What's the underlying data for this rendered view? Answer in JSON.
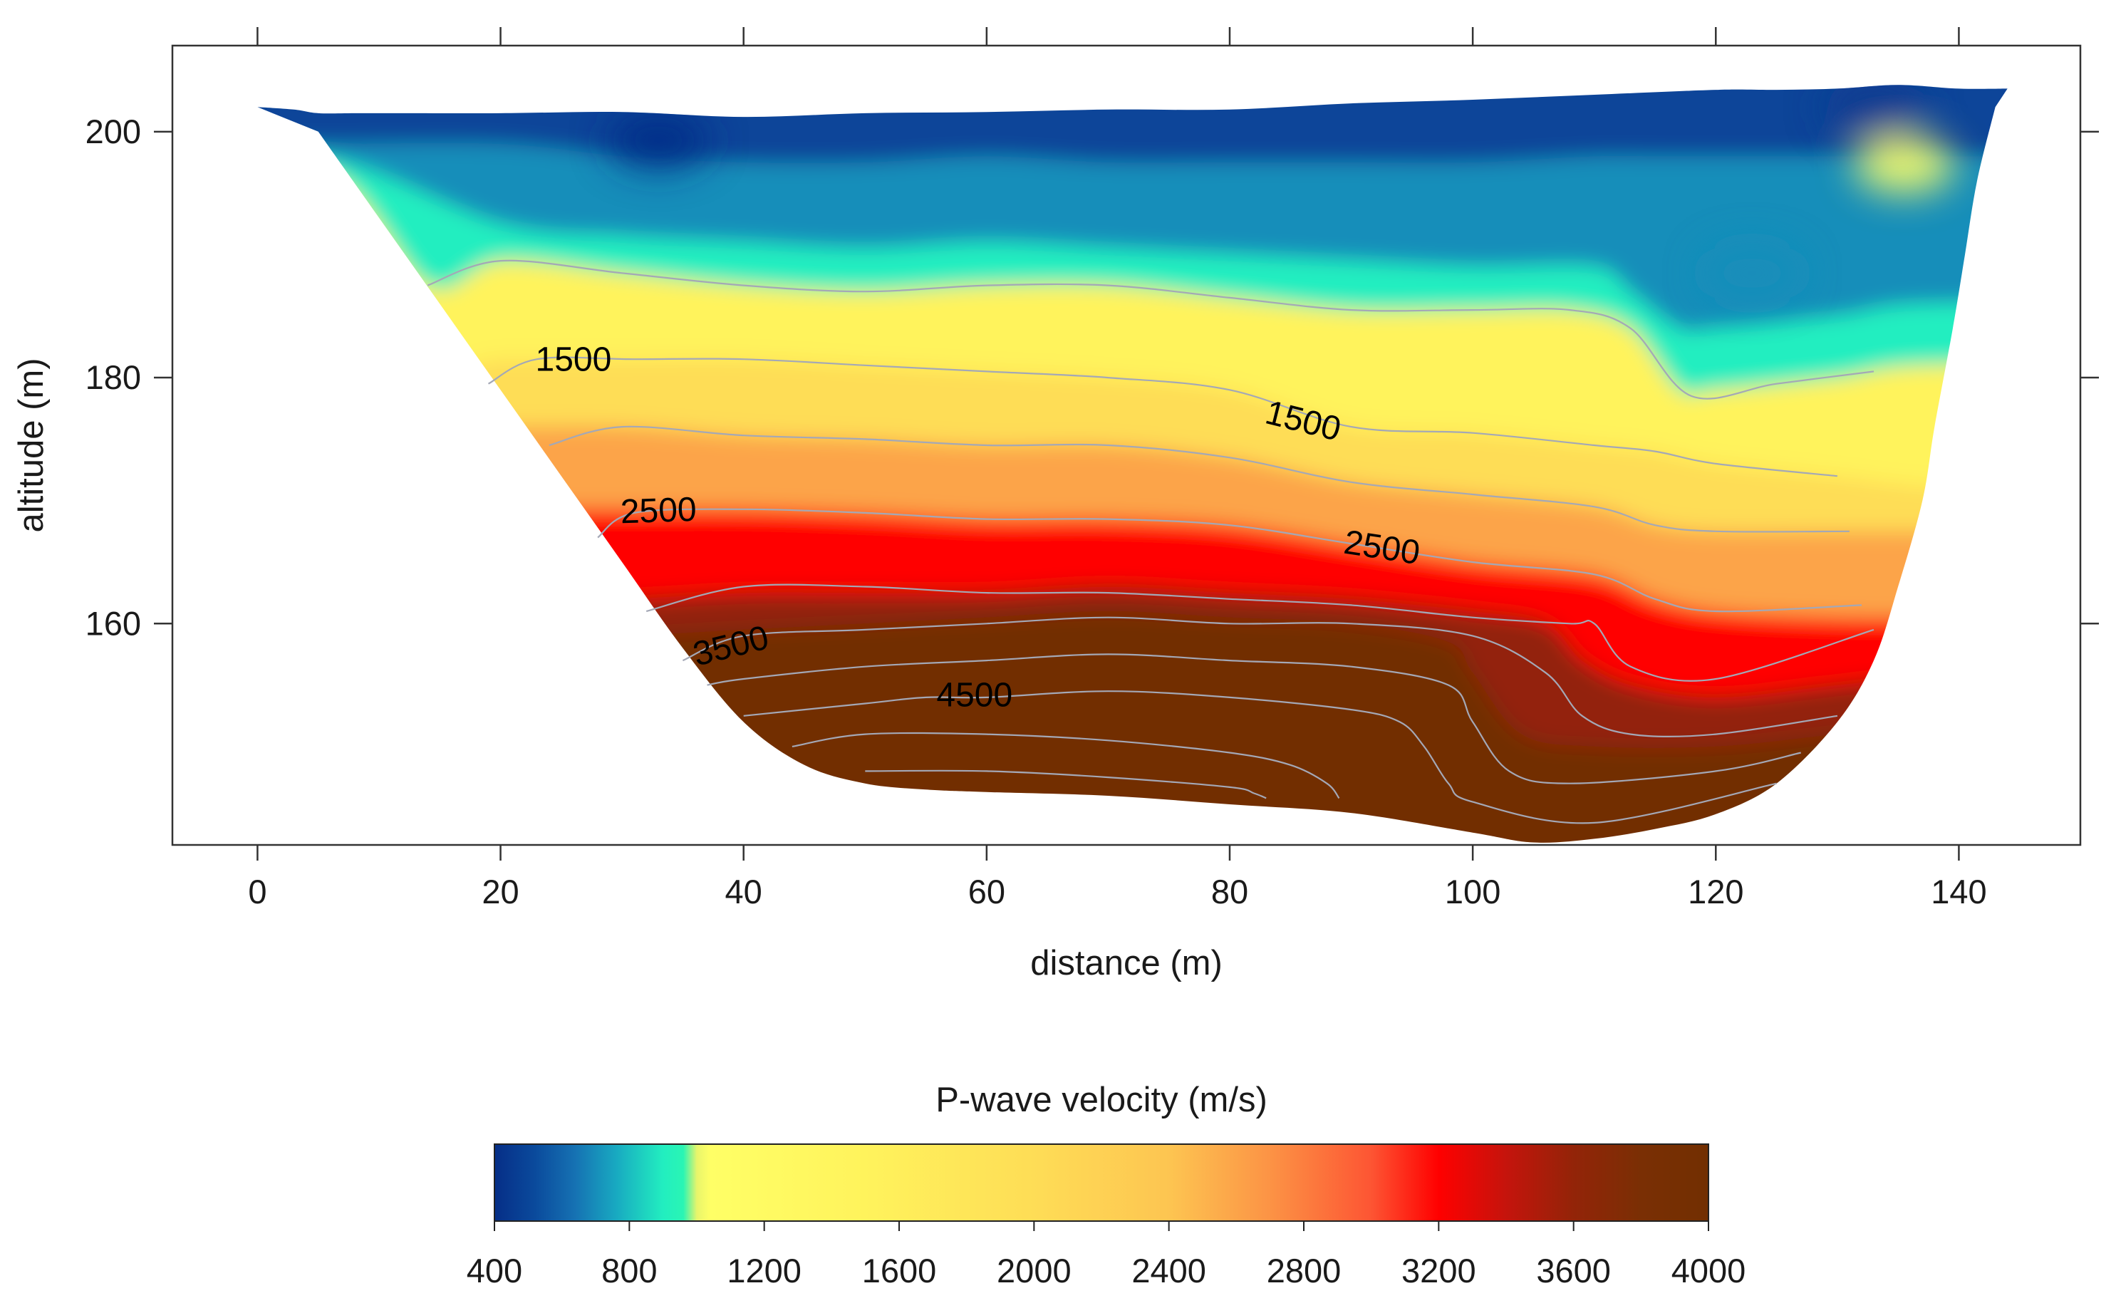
{
  "chart_data": {
    "type": "heatmap",
    "subtype": "seismic refraction tomography section with contour lines",
    "xlabel": "distance (m)",
    "ylabel": "altitude (m)",
    "xlim": [
      -7,
      150
    ],
    "ylim": [
      142,
      207
    ],
    "x_ticks": [
      0,
      20,
      40,
      60,
      80,
      100,
      120,
      140
    ],
    "x_tick_labels": [
      "0",
      "20",
      "40",
      "60",
      "80",
      "100",
      "120",
      "140"
    ],
    "y_ticks": [
      160,
      180,
      200
    ],
    "y_tick_labels": [
      "160",
      "180",
      "200"
    ],
    "surface_profile": {
      "x": [
        0,
        3,
        5,
        8,
        12,
        20,
        30,
        40,
        50,
        60,
        70,
        80,
        90,
        100,
        110,
        120,
        125,
        130,
        135,
        140,
        144
      ],
      "altitude": [
        202,
        201.8,
        201.5,
        201.5,
        201.5,
        201.5,
        201.6,
        201.2,
        201.5,
        201.6,
        201.8,
        201.8,
        202.3,
        202.6,
        203.0,
        203.4,
        203.4,
        203.5,
        203.8,
        203.5,
        203.5
      ]
    },
    "bottom_profile": {
      "x": [
        5,
        10,
        15,
        20,
        25,
        30,
        35,
        40,
        45,
        50,
        55,
        60,
        70,
        80,
        90,
        100,
        105,
        110,
        115,
        120,
        125,
        130,
        133,
        135,
        137,
        138,
        139.5,
        140.5,
        141.5,
        143
      ],
      "altitude": [
        200,
        193,
        186,
        179,
        172,
        165,
        158,
        152,
        148.5,
        147,
        146.5,
        146.3,
        146,
        145.3,
        144.6,
        143,
        142.2,
        142.5,
        143.3,
        144.5,
        147,
        152,
        157,
        163,
        170,
        176,
        184,
        190,
        196,
        202
      ]
    },
    "contours": [
      {
        "level": 800,
        "x": [
          14,
          20,
          30,
          40,
          50,
          60,
          70,
          80,
          90,
          100,
          108,
          113,
          118,
          125,
          133
        ],
        "altitude": [
          187.5,
          189.5,
          188.5,
          187.5,
          187,
          187.5,
          187.5,
          186.5,
          185.5,
          185.5,
          185.5,
          184,
          178.5,
          179.5,
          180.5
        ]
      },
      {
        "level": 1500,
        "label_positions": [
          {
            "x": 26,
            "altitude": 181.3
          },
          {
            "x": 86,
            "altitude": 176.3
          }
        ],
        "x": [
          19,
          23,
          31,
          40,
          50,
          60,
          70,
          80,
          90,
          100,
          110,
          115,
          120,
          130
        ],
        "altitude": [
          179.5,
          181.5,
          181.5,
          181.5,
          181,
          180.5,
          180,
          179,
          176,
          175.5,
          174.5,
          174,
          173,
          172
        ]
      },
      {
        "level": 2000,
        "x": [
          24,
          30,
          40,
          50,
          60,
          70,
          80,
          90,
          100,
          110,
          115,
          120,
          131
        ],
        "altitude": [
          174.5,
          176,
          175.3,
          175,
          174.5,
          174.5,
          173.5,
          171.5,
          170.5,
          169.5,
          168,
          167.5,
          167.5
        ]
      },
      {
        "level": 2500,
        "label_positions": [
          {
            "x": 33,
            "altitude": 169
          },
          {
            "x": 92.5,
            "altitude": 166
          }
        ],
        "x": [
          28,
          31,
          40,
          50,
          60,
          70,
          80,
          90,
          100,
          110,
          115,
          120,
          132
        ],
        "altitude": [
          167,
          169,
          169.3,
          169,
          168.5,
          168.5,
          168,
          166.5,
          165,
          164,
          162,
          161,
          161.5
        ]
      },
      {
        "level": 3000,
        "x": [
          32,
          40,
          50,
          60,
          70,
          80,
          90,
          100,
          108,
          110,
          113,
          120,
          133
        ],
        "altitude": [
          161,
          163,
          163,
          162.5,
          162.5,
          162,
          161.5,
          160.5,
          160,
          160,
          156.5,
          155.5,
          159.5
        ]
      },
      {
        "level": 3500,
        "label_positions": [
          {
            "x": 39,
            "altitude": 158
          }
        ],
        "x": [
          35,
          40,
          50,
          60,
          70,
          80,
          90,
          100,
          106,
          109,
          113,
          120,
          130
        ],
        "altitude": [
          157,
          159,
          159.5,
          160,
          160.5,
          160,
          160,
          159,
          156,
          152.5,
          151,
          151,
          152.5
        ]
      },
      {
        "level": 4000,
        "x": [
          37,
          40,
          50,
          60,
          70,
          80,
          90,
          98,
          100,
          103,
          108,
          120,
          127
        ],
        "altitude": [
          155,
          155.5,
          156.5,
          157,
          157.5,
          157,
          156.5,
          155,
          152,
          148,
          147,
          148,
          149.5
        ]
      },
      {
        "level": 4500,
        "label_positions": [
          {
            "x": 59,
            "altitude": 154
          }
        ],
        "x": [
          40,
          50,
          55,
          60,
          70,
          80,
          90,
          94,
          96,
          98,
          100,
          110,
          125
        ],
        "altitude": [
          152.5,
          153.5,
          154,
          154,
          154.5,
          154,
          153,
          152,
          150,
          147,
          145.5,
          143.8,
          147
        ]
      },
      {
        "level": 5000,
        "x": [
          44,
          50,
          60,
          70,
          80,
          85,
          88,
          89
        ],
        "altitude": [
          150,
          151,
          151,
          150.5,
          149.5,
          148.5,
          147,
          145.8
        ]
      },
      {
        "level": 5500,
        "x": [
          50,
          60,
          70,
          80,
          82,
          83
        ],
        "altitude": [
          148,
          148,
          147.5,
          146.7,
          146.2,
          145.8
        ]
      }
    ],
    "velocity_layers": [
      {
        "velocity": 500,
        "x": [
          5,
          20,
          30,
          40,
          50,
          60,
          70,
          80,
          90,
          100,
          110,
          115,
          120,
          130,
          135
        ],
        "altitude": [
          199,
          199,
          198,
          197.5,
          197.5,
          198,
          197.5,
          197.5,
          197.5,
          197.5,
          198,
          198,
          198,
          198,
          198
        ]
      },
      {
        "velocity": 700,
        "x": [
          5,
          20,
          30,
          40,
          50,
          60,
          70,
          80,
          90,
          100,
          110,
          113,
          117,
          120,
          130,
          137
        ],
        "altitude": [
          198,
          192.5,
          191.5,
          191,
          190.5,
          191,
          190.5,
          190,
          189.5,
          189,
          189,
          187,
          184,
          184,
          185,
          186
        ]
      },
      {
        "velocity": 900,
        "x": [
          5,
          14,
          20,
          30,
          40,
          50,
          60,
          70,
          80,
          90,
          100,
          108,
          113,
          117,
          120,
          130,
          137
        ],
        "altitude": [
          197,
          187.5,
          189.5,
          188.5,
          187.5,
          187,
          187.5,
          187.5,
          186.5,
          185.5,
          185.5,
          185.5,
          184,
          179,
          179,
          180,
          181
        ]
      },
      {
        "velocity": 1500,
        "x": [
          5,
          14,
          20,
          30,
          40,
          50,
          60,
          70,
          80,
          90,
          100,
          110,
          115,
          120,
          130,
          140
        ],
        "altitude": [
          196,
          181.5,
          181.5,
          181.5,
          181.5,
          181,
          180.5,
          180,
          179,
          176,
          175.5,
          174.5,
          174,
          173,
          172,
          171
        ]
      },
      {
        "velocity": 2000,
        "x": [
          5,
          14,
          20,
          30,
          40,
          50,
          60,
          70,
          80,
          90,
          100,
          110,
          115,
          120,
          130,
          140
        ],
        "altitude": [
          195,
          176,
          176,
          176,
          175.3,
          175,
          174.5,
          174.5,
          173.5,
          171.5,
          170.5,
          169.5,
          168,
          167.5,
          167.5,
          167.5
        ]
      },
      {
        "velocity": 2600,
        "x": [
          5,
          14,
          20,
          30,
          40,
          50,
          60,
          70,
          80,
          90,
          100,
          110,
          115,
          120,
          130,
          140
        ],
        "altitude": [
          194,
          169.3,
          169.3,
          169.3,
          169.3,
          169,
          168.5,
          168.5,
          168,
          166.5,
          165,
          164,
          162,
          161,
          160.5,
          160.5
        ]
      },
      {
        "velocity": 3200,
        "x": [
          5,
          14,
          20,
          30,
          40,
          50,
          60,
          70,
          80,
          90,
          100,
          106,
          109,
          113,
          120,
          130,
          140
        ],
        "altitude": [
          193,
          162,
          162,
          162,
          162.5,
          162.5,
          162.5,
          163,
          162.5,
          162,
          161,
          160,
          157,
          155,
          154,
          155,
          156
        ]
      },
      {
        "velocity": 3600,
        "x": [
          5,
          14,
          20,
          30,
          40,
          50,
          60,
          70,
          80,
          90,
          98,
          100,
          104,
          110,
          120,
          130,
          140
        ],
        "altitude": [
          192,
          159,
          159,
          159,
          159.5,
          160,
          160.5,
          161,
          160.5,
          160,
          158.5,
          156,
          151,
          150,
          150,
          151,
          152
        ]
      },
      {
        "velocity": 4000,
        "x": [
          5,
          14,
          20,
          30,
          40,
          50,
          60,
          70,
          80,
          90,
          97,
          99,
          102,
          108,
          120,
          130,
          140
        ],
        "altitude": [
          191,
          157,
          157,
          157,
          156.5,
          157,
          157.5,
          158,
          157.5,
          157,
          155.5,
          152,
          148,
          147,
          147.5,
          149.5,
          151
        ]
      }
    ],
    "anomalies": [
      {
        "x": 33,
        "altitude": 199.3,
        "velocity": 400
      },
      {
        "x": 133,
        "altitude": 202,
        "velocity": 450
      },
      {
        "x": 123,
        "altitude": 188.5,
        "velocity": 700
      },
      {
        "x": 135.5,
        "altitude": 197.3,
        "velocity": 1050
      }
    ],
    "colorbar": {
      "title": "P-wave velocity (m/s)",
      "min": 400,
      "max": 4000,
      "ticks": [
        400,
        800,
        1200,
        1600,
        2000,
        2400,
        2800,
        3200,
        3600,
        4000
      ],
      "tick_labels": [
        "400",
        "800",
        "1200",
        "1600",
        "2000",
        "2400",
        "2800",
        "3200",
        "3600",
        "4000"
      ],
      "stops": [
        {
          "value": 400,
          "color": "#062e87"
        },
        {
          "value": 520,
          "color": "#0a4a9c"
        },
        {
          "value": 640,
          "color": "#1672b3"
        },
        {
          "value": 760,
          "color": "#18a9c1"
        },
        {
          "value": 900,
          "color": "#22eec0"
        },
        {
          "value": 960,
          "color": "#2af5b4"
        },
        {
          "value": 1000,
          "color": "#e8f56b"
        },
        {
          "value": 1040,
          "color": "#ffff66"
        },
        {
          "value": 1500,
          "color": "#fff35c"
        },
        {
          "value": 2000,
          "color": "#fedd56"
        },
        {
          "value": 2400,
          "color": "#fdc551"
        },
        {
          "value": 2700,
          "color": "#fc9345"
        },
        {
          "value": 3000,
          "color": "#fd5533"
        },
        {
          "value": 3200,
          "color": "#ff0000"
        },
        {
          "value": 3400,
          "color": "#c5140c"
        },
        {
          "value": 3600,
          "color": "#932408"
        },
        {
          "value": 3800,
          "color": "#7a2f04"
        },
        {
          "value": 4000,
          "color": "#722f01"
        }
      ]
    },
    "colors": {
      "contour_line": "#a4a8b6",
      "axis": "#333333",
      "text": "#1a1a1a"
    }
  }
}
